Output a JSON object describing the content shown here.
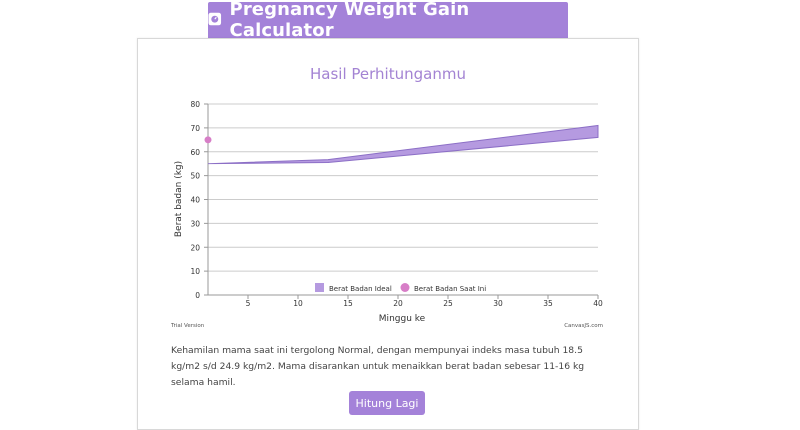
{
  "header": {
    "title": "Pregnancy Weight Gain Calculator",
    "icon": "scale-icon"
  },
  "card": {
    "result_title": "Hasil Perhitunganmu",
    "description": "Kehamilan mama saat ini tergolong Normal, dengan mempunyai indeks masa tubuh 18.5 kg/m2 s/d 24.9 kg/m2. Mama disarankan untuk menaikkan berat badan sebesar 11-16 kg selama hamil.",
    "button_label": "Hitung Lagi"
  },
  "chart_watermarks": {
    "left": "Trial Version",
    "right": "CanvasJS.com"
  },
  "colors": {
    "accent": "#a482d9",
    "band_fill": "#b59ae0",
    "band_stroke": "#8c6fc6",
    "point": "#d77ec7",
    "grid": "#cccccc"
  },
  "chart_data": {
    "type": "area",
    "xlabel": "Minggu ke",
    "ylabel": "Berat badan (kg)",
    "xlim": [
      1,
      40
    ],
    "ylim": [
      0,
      80
    ],
    "xticks": [
      5,
      10,
      15,
      20,
      25,
      30,
      35,
      40
    ],
    "yticks": [
      0,
      10,
      20,
      30,
      40,
      50,
      60,
      70,
      80
    ],
    "grid": true,
    "legend_position": "bottom-center",
    "series": [
      {
        "name": "Berat Badan Ideal",
        "kind": "range-area",
        "x": [
          1,
          13,
          40
        ],
        "low": [
          55,
          55.5,
          66
        ],
        "high": [
          55,
          56.7,
          71
        ]
      },
      {
        "name": "Berat Badan Saat Ini",
        "kind": "scatter",
        "x": [
          1
        ],
        "y": [
          65
        ]
      }
    ]
  }
}
